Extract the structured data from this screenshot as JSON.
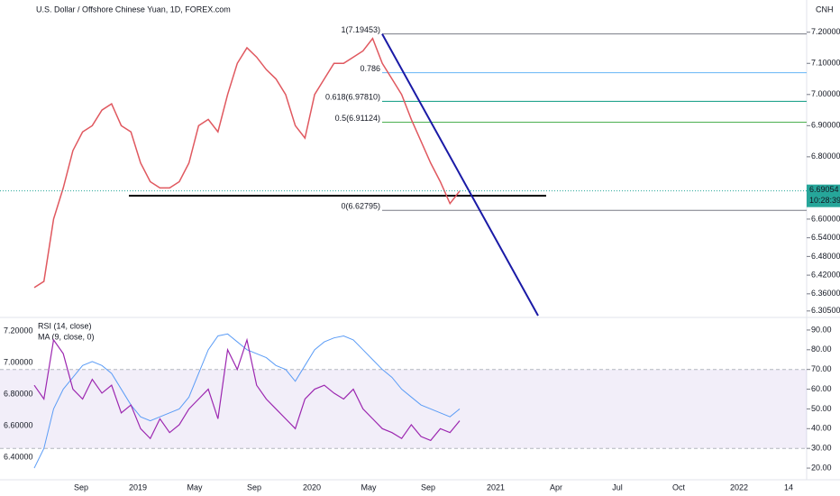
{
  "header": {
    "title": "U.S. Dollar / Offshore Chinese Yuan, 1D, FOREX.com",
    "currency": "CNH"
  },
  "price_axis": {
    "ylim": [
      6.29,
      7.26
    ],
    "ticks": [
      {
        "value": 7.2,
        "label": "7.20000"
      },
      {
        "value": 7.1,
        "label": "7.10000"
      },
      {
        "value": 7.0,
        "label": "7.00000"
      },
      {
        "value": 6.9,
        "label": "6.90000"
      },
      {
        "value": 6.8,
        "label": "6.80000"
      },
      {
        "value": 6.6,
        "label": "6.60000"
      },
      {
        "value": 6.54,
        "label": "6.54000"
      },
      {
        "value": 6.48,
        "label": "6.48000"
      },
      {
        "value": 6.42,
        "label": "6.42000"
      },
      {
        "value": 6.36,
        "label": "6.36000"
      },
      {
        "value": 6.305,
        "label": "6.30500"
      }
    ],
    "last_price": {
      "value": 6.69054,
      "label": "6.69054"
    },
    "countdown": "10:28:39"
  },
  "price": {
    "color": "#e0585f",
    "values": [
      6.38,
      6.4,
      6.6,
      6.7,
      6.82,
      6.88,
      6.9,
      6.95,
      6.97,
      6.9,
      6.88,
      6.78,
      6.72,
      6.7,
      6.7,
      6.72,
      6.78,
      6.9,
      6.92,
      6.88,
      7.0,
      7.1,
      7.15,
      7.12,
      7.08,
      7.05,
      7.0,
      6.9,
      6.86,
      7.0,
      7.05,
      7.1,
      7.1,
      7.12,
      7.14,
      7.18,
      7.1,
      7.05,
      7.0,
      6.92,
      6.85,
      6.78,
      6.72,
      6.65,
      6.69
    ]
  },
  "fib_levels": [
    {
      "value": 7.19453,
      "label": "1(7.19453)",
      "color": "#787b86"
    },
    {
      "value": 7.07,
      "label": "0.786",
      "color": "#64b5f6"
    },
    {
      "value": 6.9781,
      "label": "0.618(6.97810)",
      "color": "#089981"
    },
    {
      "value": 6.91124,
      "label": "0.5(6.91124)",
      "color": "#4caf50"
    },
    {
      "value": 6.62795,
      "label": "0(6.62795)",
      "color": "#787b86"
    }
  ],
  "support": {
    "value": 6.675
  },
  "rsi": {
    "title": "RSI (14, close)",
    "ma_title": "MA (9, close, 0)",
    "ylim": [
      15,
      95
    ],
    "ticks": [
      {
        "value": 90,
        "label": "90.00"
      },
      {
        "value": 80,
        "label": "80.00"
      },
      {
        "value": 70,
        "label": "70.00"
      },
      {
        "value": 60,
        "label": "60.00"
      },
      {
        "value": 50,
        "label": "50.00"
      },
      {
        "value": 40,
        "label": "40.00"
      },
      {
        "value": 30,
        "label": "30.00"
      },
      {
        "value": 20,
        "label": "20.00"
      }
    ],
    "band": [
      30,
      70
    ],
    "left_labels": [
      "7.20000",
      "7.00000",
      "6.80000",
      "6.60000",
      "6.40000"
    ],
    "values": [
      62,
      55,
      85,
      78,
      60,
      55,
      65,
      58,
      62,
      48,
      52,
      40,
      35,
      45,
      38,
      42,
      50,
      55,
      60,
      45,
      80,
      70,
      85,
      62,
      55,
      50,
      45,
      40,
      55,
      60,
      62,
      58,
      55,
      60,
      50,
      45,
      40,
      38,
      35,
      42,
      36,
      34,
      40,
      38,
      44
    ],
    "ma": [
      20,
      30,
      50,
      60,
      66,
      72,
      74,
      72,
      68,
      60,
      52,
      46,
      44,
      46,
      48,
      50,
      56,
      68,
      80,
      87,
      88,
      84,
      80,
      78,
      76,
      72,
      70,
      64,
      72,
      80,
      84,
      86,
      87,
      85,
      80,
      75,
      70,
      66,
      60,
      56,
      52,
      50,
      48,
      46,
      50
    ]
  },
  "time_axis": [
    "Sep",
    "2019",
    "May",
    "Sep",
    "2020",
    "May",
    "Sep",
    "2021",
    "Apr",
    "Jul",
    "Oct",
    "2022",
    "14"
  ]
}
